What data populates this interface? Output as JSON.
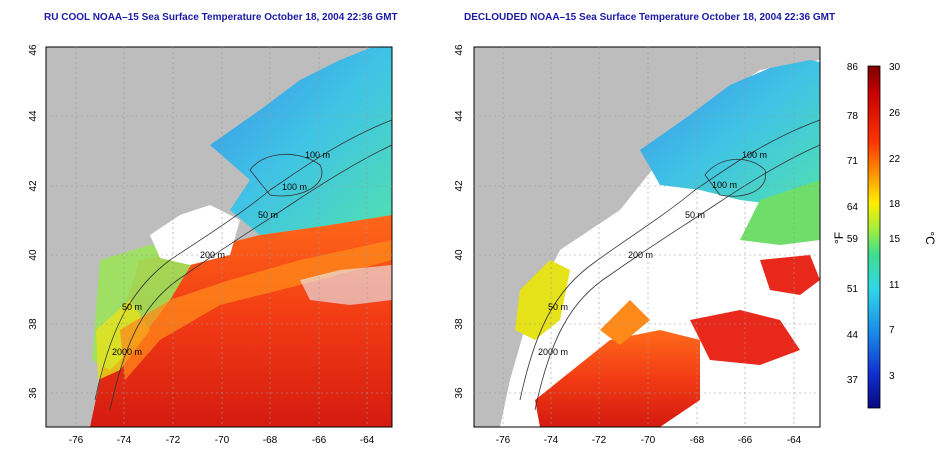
{
  "left_panel": {
    "title": "RU COOL NOAA–15 Sea Surface Temperature October 18, 2004 22:36 GMT",
    "x_ticks": [
      "-76",
      "-74",
      "-72",
      "-70",
      "-68",
      "-66",
      "-64"
    ],
    "y_ticks": [
      "36",
      "38",
      "40",
      "42",
      "44",
      "46"
    ],
    "contour_labels": [
      "100 m",
      "100 m",
      "50 m",
      "200 m",
      "50 m",
      "2000 m"
    ]
  },
  "right_panel": {
    "title": "DECLOUDED NOAA–15 Sea Surface Temperature October 18, 2004 22:36 GMT",
    "x_ticks": [
      "-76",
      "-74",
      "-72",
      "-70",
      "-68",
      "-66",
      "-64"
    ],
    "y_ticks": [
      "36",
      "38",
      "40",
      "42",
      "44",
      "46"
    ],
    "contour_labels": [
      "100 m",
      "100 m",
      "50 m",
      "200 m",
      "50 m",
      "2000 m"
    ]
  },
  "colorbar": {
    "f_label": "°F",
    "c_label": "°C",
    "f_ticks": [
      "86",
      "78",
      "71",
      "64",
      "59",
      "51",
      "44",
      "37"
    ],
    "c_ticks": [
      "30",
      "26",
      "22",
      "18",
      "15",
      "11",
      "7",
      "3"
    ]
  },
  "colors": {
    "land": "#bdbdbd",
    "cloud": "#ffffff",
    "title": "#1a1aa6",
    "warm": "#e8281a",
    "cold": "#3fc3e6"
  }
}
